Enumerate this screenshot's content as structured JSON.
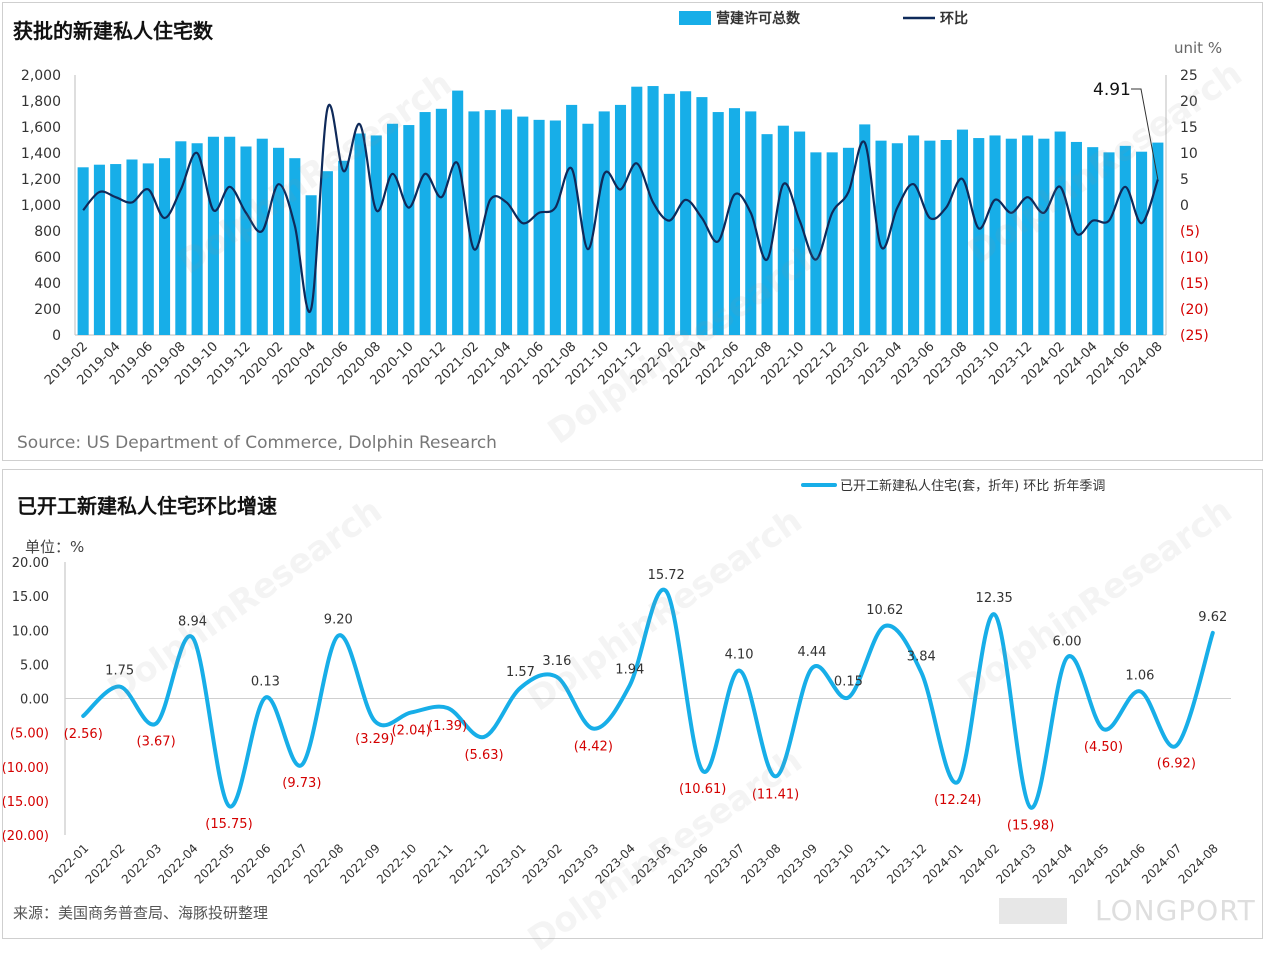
{
  "chart1": {
    "title": "获批的新建私人住宅数",
    "legend_bar": "营建许可总数",
    "legend_line": "环比",
    "right_unit": "unit %",
    "callout": "4.91",
    "source": "Source: US Department of Commerce, Dolphin Research",
    "colors": {
      "bar": "#17aee8",
      "line": "#0f2a5a",
      "neg_tick": "#d40000"
    },
    "chart_data": {
      "type": "bar",
      "title": "获批的新建私人住宅数",
      "categories": [
        "2019-02",
        "2019-03",
        "2019-04",
        "2019-05",
        "2019-06",
        "2019-07",
        "2019-08",
        "2019-09",
        "2019-10",
        "2019-11",
        "2019-12",
        "2020-01",
        "2020-02",
        "2020-03",
        "2020-04",
        "2020-05",
        "2020-06",
        "2020-07",
        "2020-08",
        "2020-09",
        "2020-10",
        "2020-11",
        "2020-12",
        "2021-01",
        "2021-02",
        "2021-03",
        "2021-04",
        "2021-05",
        "2021-06",
        "2021-07",
        "2021-08",
        "2021-09",
        "2021-10",
        "2021-11",
        "2021-12",
        "2022-01",
        "2022-02",
        "2022-03",
        "2022-04",
        "2022-05",
        "2022-06",
        "2022-07",
        "2022-08",
        "2022-09",
        "2022-10",
        "2022-11",
        "2022-12",
        "2023-01",
        "2023-02",
        "2023-03",
        "2023-04",
        "2023-05",
        "2023-06",
        "2023-07",
        "2023-08",
        "2023-09",
        "2023-10",
        "2023-11",
        "2023-12",
        "2024-01",
        "2024-02",
        "2024-03",
        "2024-04",
        "2024-05",
        "2024-06",
        "2024-07",
        "2024-08"
      ],
      "x_tick_labels": [
        "2019-02",
        "2019-04",
        "2019-06",
        "2019-08",
        "2019-10",
        "2019-12",
        "2020-02",
        "2020-04",
        "2020-06",
        "2020-08",
        "2020-10",
        "2020-12",
        "2021-02",
        "2021-04",
        "2021-06",
        "2021-08",
        "2021-10",
        "2021-12",
        "2022-02",
        "2022-04",
        "2022-06",
        "2022-08",
        "2022-10",
        "2022-12",
        "2023-02",
        "2023-04",
        "2023-06",
        "2023-08",
        "2023-10",
        "2023-12",
        "2024-02",
        "2024-04",
        "2024-06",
        "2024-08"
      ],
      "series": [
        {
          "name": "营建许可总数",
          "axis": "left",
          "values": [
            1290,
            1310,
            1315,
            1350,
            1320,
            1360,
            1490,
            1475,
            1525,
            1525,
            1450,
            1510,
            1440,
            1360,
            1075,
            1260,
            1340,
            1550,
            1535,
            1625,
            1615,
            1715,
            1740,
            1880,
            1720,
            1730,
            1735,
            1680,
            1655,
            1650,
            1770,
            1625,
            1720,
            1770,
            1910,
            1915,
            1855,
            1875,
            1830,
            1715,
            1745,
            1720,
            1545,
            1610,
            1565,
            1405,
            1405,
            1440,
            1620,
            1495,
            1475,
            1535,
            1495,
            1500,
            1580,
            1515,
            1535,
            1510,
            1535,
            1510,
            1565,
            1485,
            1445,
            1405,
            1455,
            1410,
            1480
          ]
        },
        {
          "name": "环比",
          "axis": "right",
          "values": [
            -1.0,
            2.5,
            1.5,
            0.5,
            3.0,
            -2.5,
            3.0,
            10.0,
            -1.0,
            3.5,
            -1.5,
            -5.0,
            4.0,
            -4.0,
            -20.0,
            18.5,
            6.5,
            15.5,
            -1.0,
            6.0,
            -0.5,
            6.0,
            1.5,
            8.0,
            -8.5,
            1.0,
            0.5,
            -3.5,
            -1.5,
            -0.5,
            7.0,
            -8.5,
            6.0,
            3.0,
            8.0,
            0.5,
            -3.0,
            1.0,
            -2.5,
            -7.0,
            2.0,
            -1.5,
            -10.5,
            4.0,
            -3.0,
            -10.5,
            -1.5,
            2.5,
            12.0,
            -8.0,
            -0.5,
            4.0,
            -2.5,
            -0.5,
            5.0,
            -4.5,
            1.0,
            -1.5,
            1.5,
            -1.5,
            3.5,
            -5.5,
            -3.0,
            -3.0,
            3.5,
            -3.5,
            4.91
          ]
        }
      ],
      "y_left": {
        "min": 0,
        "max": 2000,
        "step": 200,
        "tick_labels": [
          "0",
          "200",
          "400",
          "600",
          "800",
          "1,000",
          "1,200",
          "1,400",
          "1,600",
          "1,800",
          "2,000"
        ]
      },
      "y_right": {
        "min": -25,
        "max": 25,
        "step": 5,
        "tick_labels": [
          "(25)",
          "(20)",
          "(15)",
          "(10)",
          "(5)",
          "0",
          "5",
          "10",
          "15",
          "20",
          "25"
        ]
      },
      "legend": "top-center",
      "grid": false
    }
  },
  "chart2": {
    "title": "已开工新建私人住宅环比增速",
    "legend": "已开工新建私人住宅(套，折年) 环比 折年季调",
    "ylabel": "单位：%",
    "source": "来源：美国商务普查局、海豚投研整理",
    "colors": {
      "line": "#17aee8",
      "pos_label": "#333333",
      "neg_label": "#d40000"
    },
    "chart_data": {
      "type": "line",
      "title": "已开工新建私人住宅环比增速",
      "ylabel": "单位：%",
      "categories": [
        "2022-01",
        "2022-02",
        "2022-03",
        "2022-04",
        "2022-05",
        "2022-06",
        "2022-07",
        "2022-08",
        "2022-09",
        "2022-10",
        "2022-11",
        "2022-12",
        "2023-01",
        "2023-02",
        "2023-03",
        "2023-04",
        "2023-05",
        "2023-06",
        "2023-07",
        "2023-08",
        "2023-09",
        "2023-10",
        "2023-11",
        "2023-12",
        "2024-01",
        "2024-02",
        "2024-03",
        "2024-04",
        "2024-05",
        "2024-06",
        "2024-07",
        "2024-08"
      ],
      "series": [
        {
          "name": "已开工新建私人住宅(套，折年) 环比 折年季调",
          "values": [
            -2.56,
            1.75,
            -3.67,
            8.94,
            -15.75,
            0.13,
            -9.73,
            9.2,
            -3.29,
            -2.04,
            -1.39,
            -5.63,
            1.57,
            3.16,
            -4.42,
            1.94,
            15.72,
            -10.61,
            4.1,
            -11.41,
            4.44,
            0.15,
            10.62,
            3.84,
            -12.24,
            12.35,
            -15.98,
            6.0,
            -4.5,
            1.06,
            -6.92,
            9.62
          ],
          "data_labels": [
            "(2.56)",
            "1.75",
            "(3.67)",
            "8.94",
            "(15.75)",
            "0.13",
            "(9.73)",
            "9.20",
            "(3.29)",
            "(2.04)",
            "(1.39)",
            "(5.63)",
            "1.57",
            "3.16",
            "(4.42)",
            "1.94",
            "15.72",
            "(10.61)",
            "4.10",
            "(11.41)",
            "4.44",
            "0.15",
            "10.62",
            "3.84",
            "(12.24)",
            "12.35",
            "(15.98)",
            "6.00",
            "(4.50)",
            "1.06",
            "(6.92)",
            "9.62"
          ]
        }
      ],
      "y": {
        "min": -20,
        "max": 20,
        "step": 5,
        "tick_labels": [
          "(20.00)",
          "(15.00)",
          "(10.00)",
          "(5.00)",
          "0.00",
          "5.00",
          "10.00",
          "15.00",
          "20.00"
        ]
      },
      "legend": "top-right",
      "grid": false
    }
  },
  "watermark": {
    "cn": "海豚投研",
    "en": "DolphinResearch",
    "brand": "LONGPORT"
  }
}
